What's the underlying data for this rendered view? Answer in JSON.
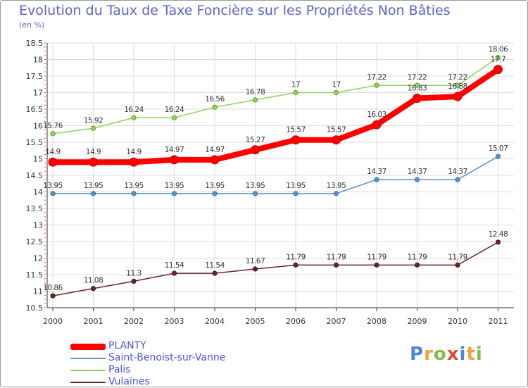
{
  "chart_data": {
    "type": "line",
    "title": "Evolution du Taux de Taxe Foncière sur les Propriétés Non Bâties",
    "ylabel": "(en %)",
    "xlabel": "",
    "categories": [
      "2000",
      "2001",
      "2002",
      "2003",
      "2004",
      "2005",
      "2006",
      "2007",
      "2008",
      "2009",
      "2010",
      "2011"
    ],
    "ylim": [
      10.5,
      18.5
    ],
    "yticks": [
      "10.5",
      "11",
      "11.5",
      "12",
      "12.5",
      "13",
      "13.5",
      "14",
      "14.5",
      "15",
      "15.5",
      "16",
      "16.5",
      "17",
      "17.5",
      "18",
      "18.5"
    ],
    "grid": true,
    "series": [
      {
        "name": "PLANTY",
        "color": "#ff0000",
        "values": [
          14.9,
          14.9,
          14.9,
          14.97,
          14.97,
          15.27,
          15.57,
          15.57,
          16.03,
          16.83,
          16.88,
          17.7
        ],
        "labels": [
          "14.9",
          "14.9",
          "14.9",
          "14.97",
          "14.97",
          "15.27",
          "15.57",
          "15.57",
          "16.03",
          "16.83",
          "16.88",
          "17.7"
        ]
      },
      {
        "name": "Saint-Benoist-sur-Vanne",
        "color": "#5b8fc9",
        "values": [
          13.95,
          13.95,
          13.95,
          13.95,
          13.95,
          13.95,
          13.95,
          13.95,
          14.37,
          14.37,
          14.37,
          15.07
        ],
        "labels": [
          "13.95",
          "13.95",
          "13.95",
          "13.95",
          "13.95",
          "13.95",
          "13.95",
          "13.95",
          "14.37",
          "14.37",
          "14.37",
          "15.07"
        ]
      },
      {
        "name": "Palis",
        "color": "#8fd15c",
        "values": [
          15.76,
          15.92,
          16.24,
          16.24,
          16.56,
          16.78,
          17,
          17,
          17.22,
          17.22,
          17.22,
          18.06
        ],
        "labels": [
          "15.76",
          "15.92",
          "16.24",
          "16.24",
          "16.56",
          "16.78",
          "17",
          "17",
          "17.22",
          "17.22",
          "17.22",
          "18.06"
        ]
      },
      {
        "name": "Vulaines",
        "color": "#6b2428",
        "values": [
          10.86,
          11.08,
          11.3,
          11.54,
          11.54,
          11.67,
          11.79,
          11.79,
          11.79,
          11.79,
          11.79,
          12.48
        ],
        "labels": [
          "10.86",
          "11.08",
          "11.3",
          "11.54",
          "11.54",
          "11.67",
          "11.79",
          "11.79",
          "11.79",
          "11.79",
          "11.79",
          "12.48"
        ]
      }
    ],
    "legend_position": "bottom-left"
  },
  "brand": {
    "letters": [
      "P",
      "r",
      "o",
      "x",
      "i",
      "t",
      "i"
    ],
    "colors": [
      "#4a86d8",
      "#f2a23a",
      "#7cc04b",
      "#e04a3a",
      "#4a86d8",
      "#f2a23a",
      "#7cc04b"
    ]
  }
}
